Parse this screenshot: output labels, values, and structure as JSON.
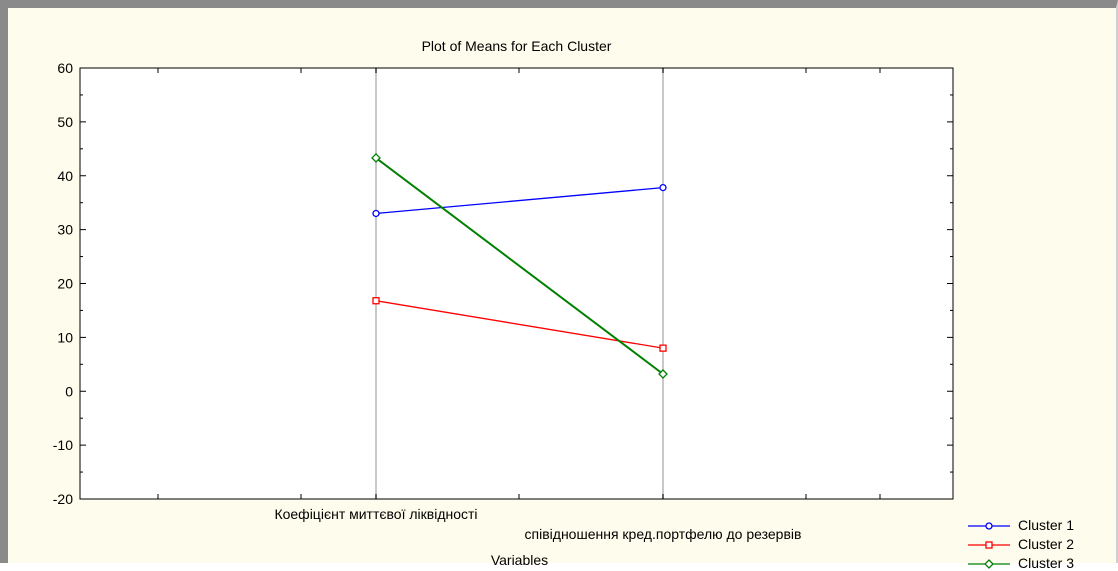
{
  "chart_data": {
    "type": "line",
    "title": "Plot of Means for Each Cluster",
    "xlabel": "Variables",
    "ylabel": "",
    "categories": [
      "Коефіцієнт миттєвої ліквідності",
      "співідношення кред.портфелю до резервів"
    ],
    "ylim": [
      -20,
      60
    ],
    "yticks": [
      -20,
      -10,
      0,
      10,
      20,
      30,
      40,
      50,
      60
    ],
    "yticklabels": [
      "-20",
      "-10",
      "0",
      "10",
      "20",
      "30",
      "40",
      "50",
      "60"
    ],
    "grid": "vertical",
    "legend_position": "bottom-right",
    "series": [
      {
        "name": "Cluster  1",
        "values": [
          33,
          37.8
        ],
        "color": "#0000ff",
        "marker": "circle"
      },
      {
        "name": "Cluster  2",
        "values": [
          16.8,
          8
        ],
        "color": "#ff0000",
        "marker": "square"
      },
      {
        "name": "Cluster  3",
        "values": [
          43.3,
          3.2
        ],
        "color": "#008000",
        "marker": "diamond"
      }
    ]
  }
}
